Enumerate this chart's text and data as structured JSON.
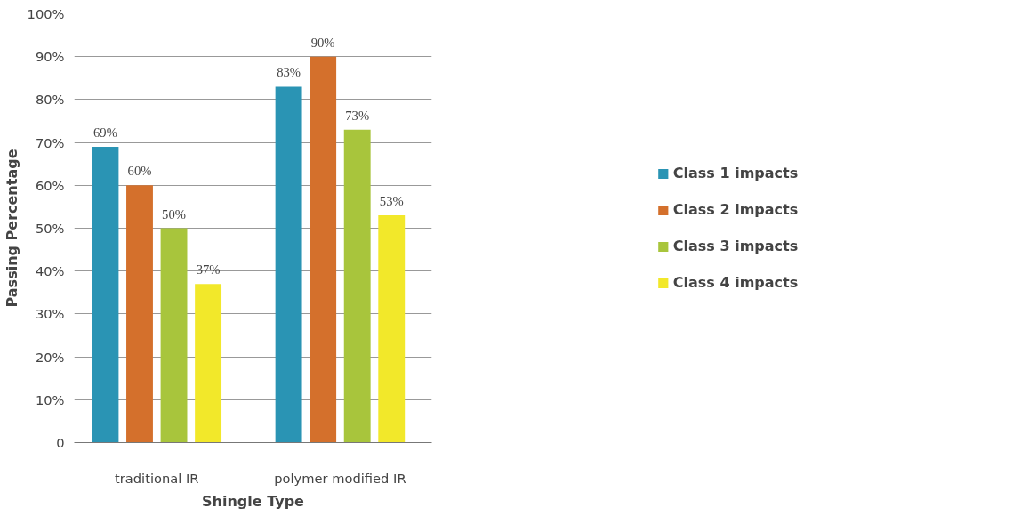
{
  "chart_data": {
    "type": "bar",
    "xlabel": "Shingle Type",
    "ylabel": "Passing Percentage",
    "categories": [
      "traditional IR",
      "polymer modified IR"
    ],
    "series": [
      {
        "name": "Class 1 impacts",
        "color": "#2a94b4",
        "values": [
          69,
          83
        ],
        "value_labels": [
          "69%",
          "83%"
        ]
      },
      {
        "name": "Class 2 impacts",
        "color": "#d4702c",
        "values": [
          60,
          90
        ],
        "value_labels": [
          "60%",
          "90%"
        ]
      },
      {
        "name": "Class 3 impacts",
        "color": "#a8c53c",
        "values": [
          50,
          73
        ],
        "value_labels": [
          "50%",
          "73%"
        ]
      },
      {
        "name": "Class 4 impacts",
        "color": "#f2e82a",
        "values": [
          37,
          53
        ],
        "value_labels": [
          "37%",
          "53%"
        ]
      }
    ],
    "ylim": [
      0,
      100
    ],
    "yticks": [
      {
        "value": 0,
        "label": "0"
      },
      {
        "value": 10,
        "label": "10%"
      },
      {
        "value": 20,
        "label": "20%"
      },
      {
        "value": 30,
        "label": "30%"
      },
      {
        "value": 40,
        "label": "40%"
      },
      {
        "value": 50,
        "label": "50%"
      },
      {
        "value": 60,
        "label": "60%"
      },
      {
        "value": 70,
        "label": "70%"
      },
      {
        "value": 80,
        "label": "80%"
      },
      {
        "value": 90,
        "label": "90%"
      },
      {
        "value": 100,
        "label": "100%"
      }
    ],
    "grid": "y",
    "legend": "right"
  }
}
